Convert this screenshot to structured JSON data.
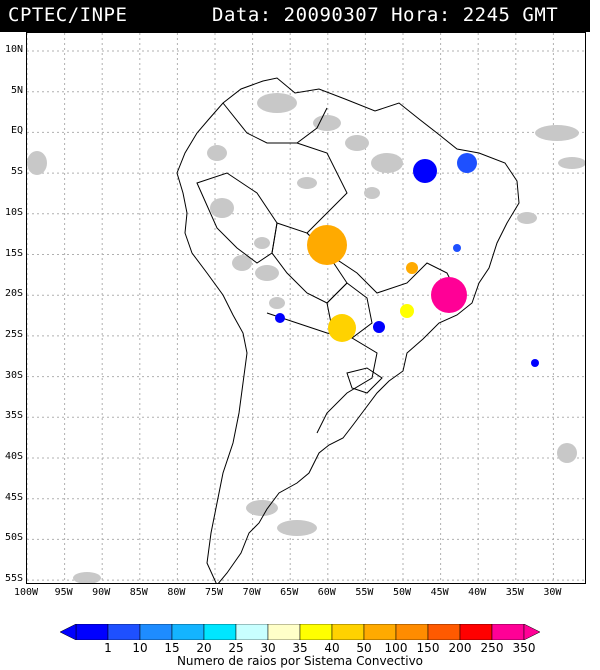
{
  "header": {
    "source": "CPTEC/INPE",
    "datetime": "Data: 20090307 Hora: 2245 GMT"
  },
  "lat_labels": [
    "10N",
    "5N",
    "EQ",
    "5S",
    "10S",
    "15S",
    "20S",
    "25S",
    "30S",
    "35S",
    "40S",
    "45S",
    "50S",
    "55S"
  ],
  "lon_labels": [
    "100W",
    "95W",
    "90W",
    "85W",
    "80W",
    "75W",
    "70W",
    "65W",
    "60W",
    "55W",
    "50W",
    "45W",
    "40W",
    "35W",
    "30W"
  ],
  "legend": {
    "values": [
      "1",
      "10",
      "15",
      "20",
      "25",
      "30",
      "35",
      "40",
      "50",
      "100",
      "150",
      "200",
      "250",
      "350"
    ],
    "colors": [
      "#0000ff",
      "#1e50ff",
      "#1e8cff",
      "#14b4ff",
      "#00e6ff",
      "#c8ffff",
      "#ffffc8",
      "#ffff00",
      "#ffd200",
      "#ffaa00",
      "#ff8c00",
      "#ff5a00",
      "#ff0000",
      "#ff0096"
    ],
    "caption": "Numero de raios por Sistema Convectivo"
  },
  "colors": {
    "land_outline": "#000000",
    "cloud_gray": "#c8c8c8",
    "grid": "#b0b0b0"
  }
}
